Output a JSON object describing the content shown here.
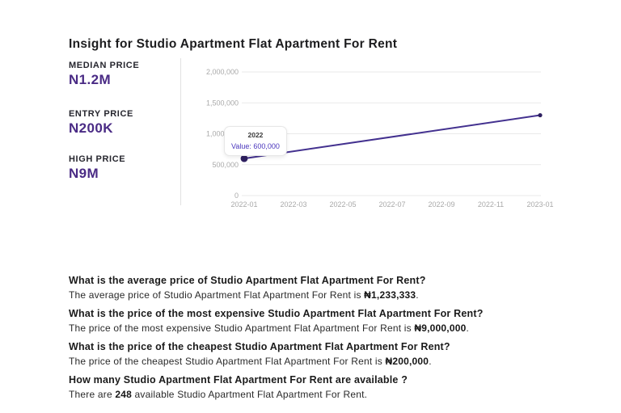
{
  "title": "Insight for Studio Apartment Flat Apartment For Rent",
  "stats": [
    {
      "label": "MEDIAN PRICE",
      "value": "N1.2M"
    },
    {
      "label": "ENTRY PRICE",
      "value": "N200K"
    },
    {
      "label": "HIGH PRICE",
      "value": "N9M"
    }
  ],
  "chart_data": {
    "type": "line",
    "title": "",
    "x": [
      "2022-01",
      "2023-01"
    ],
    "series": [
      {
        "name": "Value",
        "values": [
          600000,
          1300000
        ]
      }
    ],
    "x_tick_labels": [
      "2022-01",
      "2022-03",
      "2022-05",
      "2022-07",
      "2022-09",
      "2022-11",
      "2023-01"
    ],
    "y_ticks": [
      0,
      500000,
      1000000,
      1500000,
      2000000
    ],
    "y_tick_labels": [
      "0",
      "500,000",
      "1,000,000",
      "1,500,000",
      "2,000,000"
    ],
    "ylim": [
      0,
      2000000
    ],
    "grid": "horizontal-only",
    "legend": "none",
    "tooltip": {
      "title": "2022",
      "value_label": "Value: 600,000",
      "x": "2022-01",
      "value": 600000
    }
  },
  "qa": [
    {
      "question": "What is the average price of Studio Apartment Flat Apartment For Rent?",
      "answer_prefix": "The average price of Studio Apartment Flat Apartment For Rent is ",
      "answer_value": "₦1,233,333",
      "answer_suffix": "."
    },
    {
      "question": "What is the price of the most expensive Studio Apartment Flat Apartment For Rent?",
      "answer_prefix": "The price of the most expensive Studio Apartment Flat Apartment For Rent is ",
      "answer_value": "₦9,000,000",
      "answer_suffix": "."
    },
    {
      "question": "What is the price of the cheapest Studio Apartment Flat Apartment For Rent?",
      "answer_prefix": "The price of the cheapest Studio Apartment Flat Apartment For Rent is ",
      "answer_value": "₦200,000",
      "answer_suffix": "."
    },
    {
      "question": "How many Studio Apartment Flat Apartment For Rent are available ?",
      "answer_prefix": "There are ",
      "answer_value": "248",
      "answer_suffix": " available Studio Apartment Flat Apartment For Rent."
    }
  ],
  "colors": {
    "accent_purple": "#4a2b85",
    "line_purple": "#43318f",
    "point_purple": "#2e2060",
    "tooltip_value_purple": "#4a36bd",
    "axis_label_gray": "#a9a9a9",
    "gridline_gray": "#e9e9e9"
  }
}
